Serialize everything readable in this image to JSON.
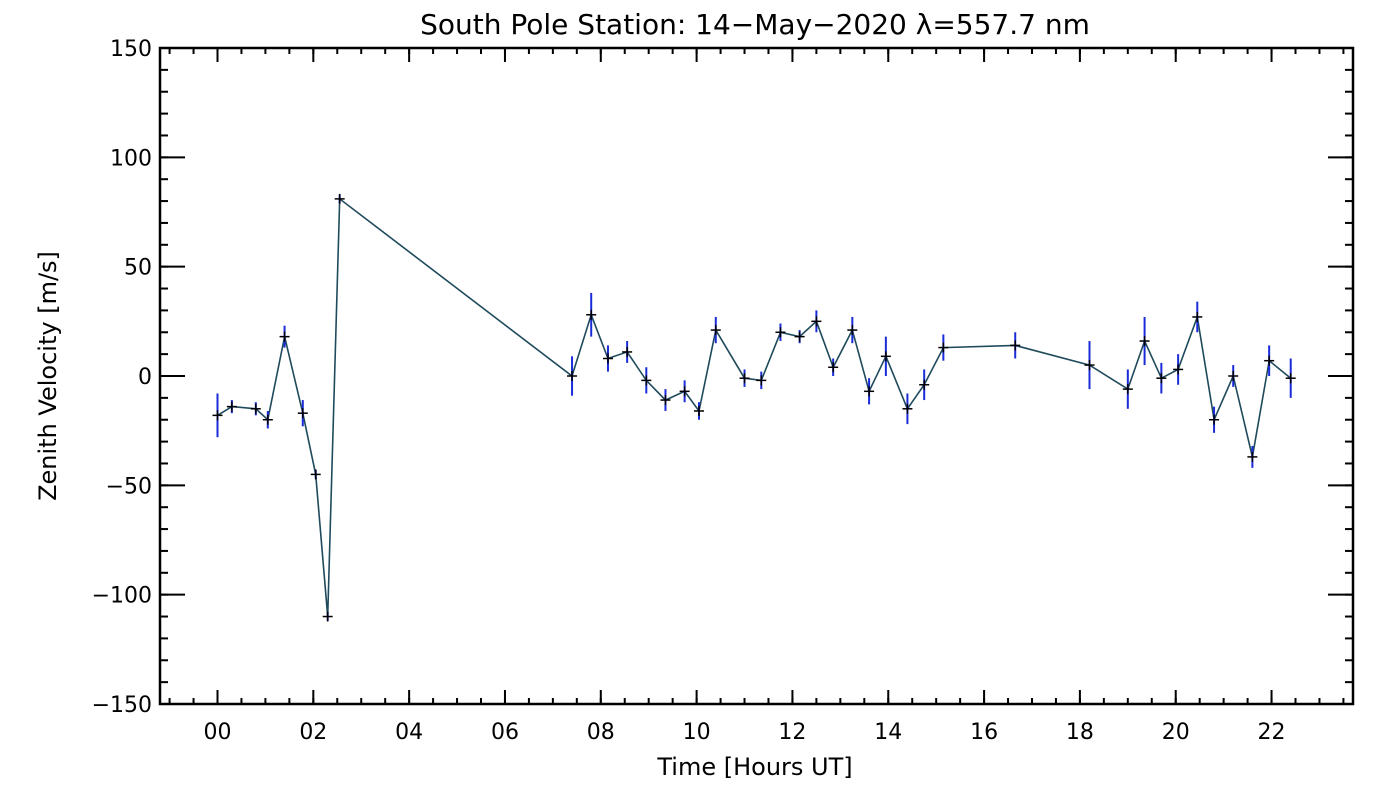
{
  "chart_data": {
    "type": "line",
    "title": "South Pole Station: 14−May−2020 λ=557.7 nm",
    "xlabel": "Time [Hours UT]",
    "ylabel": "Zenith Velocity [m/s]",
    "xlim": [
      -1.2,
      23.7
    ],
    "ylim": [
      -150,
      150
    ],
    "x_ticks": [
      0,
      2,
      4,
      6,
      8,
      10,
      12,
      14,
      16,
      18,
      20,
      22
    ],
    "x_tick_labels": [
      "00",
      "02",
      "04",
      "06",
      "08",
      "10",
      "12",
      "14",
      "16",
      "18",
      "20",
      "22"
    ],
    "y_ticks": [
      -150,
      -100,
      -50,
      0,
      50,
      100,
      150
    ],
    "y_tick_labels": [
      "−150",
      "−100",
      "−50",
      "0",
      "50",
      "100",
      "150"
    ],
    "grid": false,
    "colors": {
      "line": "#1f4a5c",
      "error_bar": "#1a2bd8",
      "marker": "#000000",
      "axis": "#000000"
    },
    "series": [
      {
        "x": [
          0.0,
          0.3,
          0.8,
          1.05,
          1.4,
          1.78,
          2.05,
          2.3,
          2.55,
          7.4,
          7.8,
          8.15,
          8.55,
          8.95,
          9.35,
          9.75,
          10.05,
          10.4,
          11.0,
          11.35,
          11.75,
          12.15,
          12.5,
          12.85,
          13.25,
          13.6,
          13.95,
          14.4,
          14.75,
          15.15,
          16.65,
          18.2,
          19.0,
          19.35,
          19.7,
          20.05,
          20.45,
          20.8,
          21.2,
          21.6,
          21.95,
          22.4
        ],
        "y": [
          -18,
          -14,
          -15,
          -20,
          18,
          -17,
          -45,
          -110,
          81,
          0,
          28,
          8,
          11,
          -2,
          -11,
          -7,
          -16,
          21,
          -1,
          -2,
          20,
          18,
          25,
          4,
          21,
          -7,
          9,
          -15,
          -4,
          13,
          14,
          5,
          -6,
          16,
          -1,
          3,
          27,
          -20,
          0,
          -37,
          7,
          -1
        ],
        "error": [
          10,
          3,
          3,
          4,
          5,
          6,
          2,
          2,
          2,
          9,
          10,
          6,
          5,
          6,
          5,
          5,
          4,
          6,
          4,
          4,
          4,
          3,
          5,
          4,
          6,
          6,
          9,
          7,
          7,
          6,
          6,
          11,
          9,
          11,
          7,
          7,
          7,
          6,
          5,
          5,
          7,
          9
        ]
      }
    ]
  }
}
